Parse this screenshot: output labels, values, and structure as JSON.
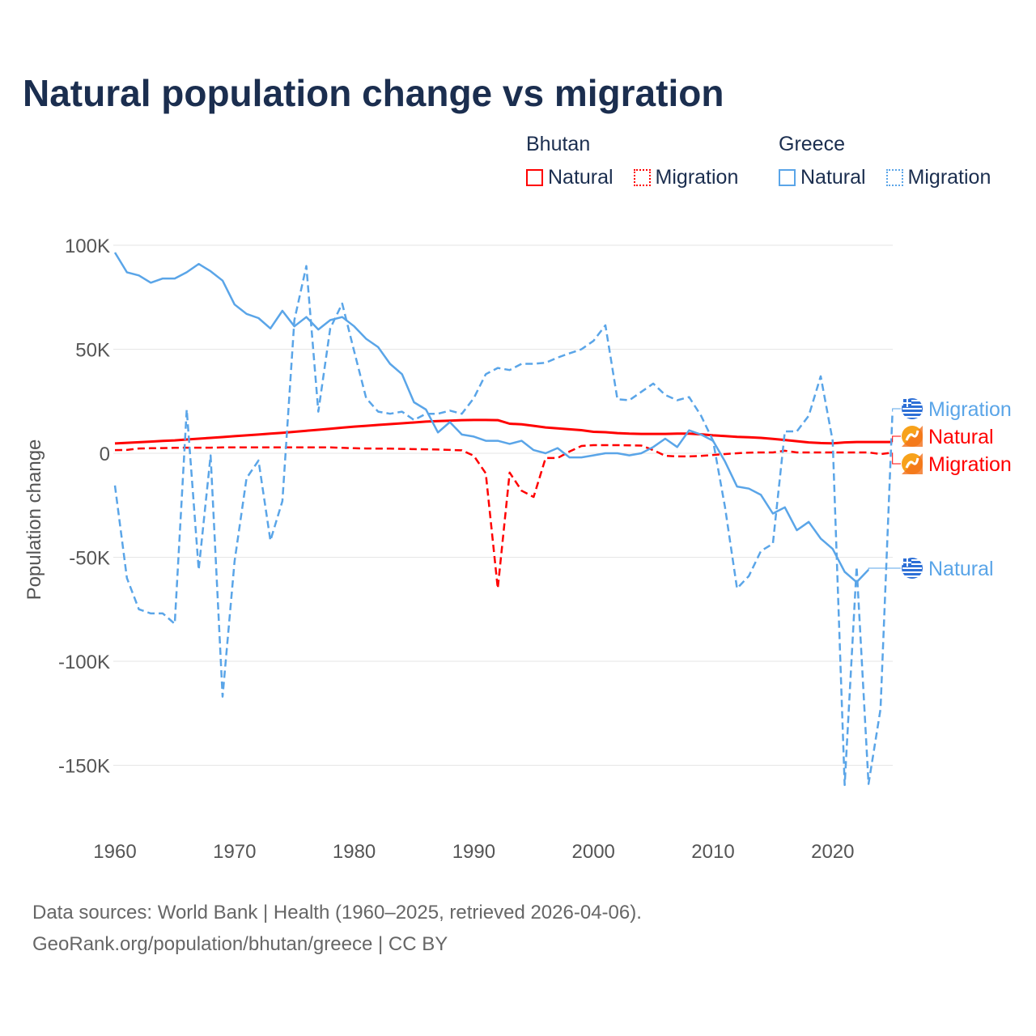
{
  "chart_data": {
    "type": "line",
    "title": "Natural population change vs migration",
    "ylabel": "Population change",
    "xlabel": "",
    "ylim": [
      -160000,
      100000
    ],
    "xlim": [
      1960,
      2025
    ],
    "y_ticks": [
      100000,
      50000,
      0,
      -50000,
      -100000,
      -150000
    ],
    "y_tick_labels": [
      "100K",
      "50K",
      "0",
      "-50K",
      "-100K",
      "-150K"
    ],
    "x_ticks": [
      1960,
      1970,
      1980,
      1990,
      2000,
      2010,
      2020
    ],
    "x_tick_labels": [
      "1960",
      "1970",
      "1980",
      "1990",
      "2000",
      "2010",
      "2020"
    ],
    "grid": true,
    "legend_placement": "top-right",
    "legend": {
      "groups": [
        {
          "name": "Bhutan",
          "items": [
            "Natural",
            "Migration"
          ]
        },
        {
          "name": "Greece",
          "items": [
            "Natural",
            "Migration"
          ]
        }
      ]
    },
    "series": [
      {
        "name": "Bhutan Natural",
        "country": "Bhutan",
        "kind": "Natural",
        "color": "#ff0000",
        "dash": false,
        "start": 1960,
        "values": [
          4700,
          5000,
          5300,
          5600,
          5900,
          6200,
          6600,
          7000,
          7400,
          7800,
          8200,
          8600,
          9000,
          9400,
          9800,
          10300,
          10800,
          11300,
          11800,
          12300,
          12800,
          13200,
          13600,
          14000,
          14400,
          14800,
          15200,
          15500,
          15700,
          15900,
          16000,
          16000,
          15900,
          14200,
          13900,
          13200,
          12400,
          12000,
          11500,
          11100,
          10300,
          10100,
          9700,
          9400,
          9300,
          9300,
          9300,
          9400,
          9400,
          9100,
          8600,
          8300,
          7900,
          7700,
          7400,
          6900,
          6400,
          5800,
          5200,
          4900,
          4800,
          5200,
          5400,
          5400,
          5400,
          5400
        ]
      },
      {
        "name": "Bhutan Migration",
        "country": "Bhutan",
        "kind": "Migration",
        "color": "#ff0000",
        "dash": true,
        "start": 1960,
        "values": [
          1500,
          1600,
          2300,
          2400,
          2500,
          2600,
          2700,
          2700,
          2700,
          2800,
          2800,
          2800,
          2800,
          2800,
          2800,
          2800,
          2800,
          2800,
          2800,
          2600,
          2400,
          2300,
          2200,
          2200,
          2100,
          2000,
          1900,
          1800,
          1600,
          1400,
          -1200,
          -9700,
          -65000,
          -9300,
          -18000,
          -21000,
          -2300,
          -2300,
          800,
          3500,
          3900,
          3900,
          3900,
          3800,
          3700,
          1500,
          -1200,
          -1500,
          -1500,
          -1300,
          -800,
          -400,
          0,
          300,
          400,
          400,
          1200,
          400,
          400,
          400,
          400,
          400,
          400,
          400,
          -400,
          300
        ]
      },
      {
        "name": "Greece Natural",
        "country": "Greece",
        "kind": "Natural",
        "color": "#5aa5e8",
        "dash": false,
        "start": 1960,
        "values": [
          96500,
          87000,
          85500,
          82000,
          84000,
          84000,
          87000,
          91000,
          87500,
          83000,
          71500,
          67000,
          65000,
          60000,
          68500,
          61000,
          65500,
          59500,
          64000,
          65500,
          61000,
          55000,
          51000,
          43000,
          38000,
          24500,
          21000,
          10000,
          15000,
          9000,
          8000,
          6000,
          6000,
          4500,
          6000,
          1500,
          0,
          2500,
          -2000,
          -2000,
          -1000,
          0,
          0,
          -1000,
          0,
          3000,
          7000,
          3000,
          11000,
          9000,
          6000,
          -4000,
          -16000,
          -17000,
          -20000,
          -29000,
          -26000,
          -37000,
          -33000,
          -41000,
          -46000,
          -57000,
          -62000,
          -56000
        ]
      },
      {
        "name": "Greece Migration",
        "country": "Greece",
        "kind": "Migration",
        "color": "#5aa5e8",
        "dash": true,
        "start": 1960,
        "values": [
          -15500,
          -60000,
          -75000,
          -77000,
          -77000,
          -82000,
          21000,
          -56000,
          -1000,
          -117000,
          -52000,
          -12000,
          -3500,
          -42000,
          -23000,
          64000,
          90000,
          20000,
          60000,
          72000,
          49000,
          26500,
          20000,
          19000,
          20000,
          16000,
          19000,
          19000,
          20500,
          19000,
          26500,
          38000,
          41000,
          40000,
          43000,
          43000,
          43500,
          46000,
          48000,
          50000,
          54000,
          61500,
          26000,
          25500,
          29500,
          33500,
          28000,
          25500,
          27000,
          18000,
          6000,
          -26000,
          -65000,
          -59000,
          -47000,
          -43500,
          10500,
          10500,
          18000,
          37000,
          6000,
          -159500,
          -54500,
          -159000,
          -123000,
          20000
        ]
      }
    ],
    "end_labels": [
      {
        "text": "Migration",
        "series": "Greece Migration",
        "flag": "greece-flag",
        "color": "#5aa5e8"
      },
      {
        "text": "Natural",
        "series": "Bhutan Natural",
        "flag": "bhutan-flag",
        "color": "#ff0000"
      },
      {
        "text": "Migration",
        "series": "Bhutan Migration",
        "flag": "bhutan-flag",
        "color": "#ff0000"
      },
      {
        "text": "Natural",
        "series": "Greece Natural",
        "flag": "greece-flag",
        "color": "#5aa5e8"
      }
    ]
  },
  "footer": {
    "line1": "Data sources: World Bank | Health (1960–2025, retrieved 2026-04-06).",
    "line2": "GeoRank.org/population/bhutan/greece | CC BY"
  }
}
